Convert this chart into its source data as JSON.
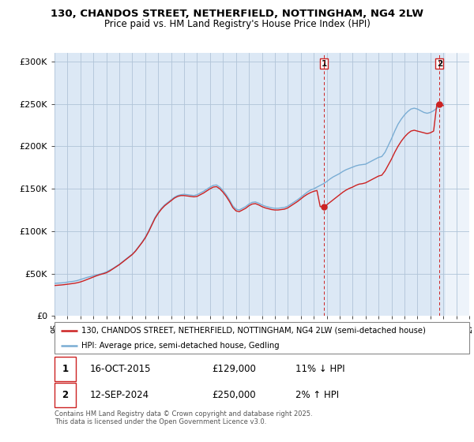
{
  "title": "130, CHANDOS STREET, NETHERFIELD, NOTTINGHAM, NG4 2LW",
  "subtitle": "Price paid vs. HM Land Registry's House Price Index (HPI)",
  "background_color": "#ffffff",
  "plot_bg_color": "#dce8f5",
  "grid_color": "#b0c4d8",
  "hpi_color": "#7aadd4",
  "price_color": "#cc2222",
  "annotation1_year": 2015.8,
  "annotation1_value": 129000,
  "annotation1_date": "16-OCT-2015",
  "annotation1_price": "£129,000",
  "annotation1_hpi": "11% ↓ HPI",
  "annotation2_year": 2024.7,
  "annotation2_value": 250000,
  "annotation2_date": "12-SEP-2024",
  "annotation2_price": "£250,000",
  "annotation2_hpi": "2% ↑ HPI",
  "ylim_min": 0,
  "ylim_max": 310000,
  "xmin": 1995,
  "xmax": 2027,
  "yticks": [
    0,
    50000,
    100000,
    150000,
    200000,
    250000,
    300000
  ],
  "ytick_labels": [
    "£0",
    "£50K",
    "£100K",
    "£150K",
    "£200K",
    "£250K",
    "£300K"
  ],
  "copyright_text": "Contains HM Land Registry data © Crown copyright and database right 2025.\nThis data is licensed under the Open Government Licence v3.0.",
  "legend_label1": "130, CHANDOS STREET, NETHERFIELD, NOTTINGHAM, NG4 2LW (semi-detached house)",
  "legend_label2": "HPI: Average price, semi-detached house, Gedling",
  "hpi_data": [
    [
      1995.0,
      38500
    ],
    [
      1995.25,
      38800
    ],
    [
      1995.5,
      39000
    ],
    [
      1995.75,
      39300
    ],
    [
      1996.0,
      40000
    ],
    [
      1996.25,
      40500
    ],
    [
      1996.5,
      41000
    ],
    [
      1996.75,
      41800
    ],
    [
      1997.0,
      43000
    ],
    [
      1997.25,
      44200
    ],
    [
      1997.5,
      45500
    ],
    [
      1997.75,
      46500
    ],
    [
      1998.0,
      47500
    ],
    [
      1998.25,
      48500
    ],
    [
      1998.5,
      49500
    ],
    [
      1998.75,
      50500
    ],
    [
      1999.0,
      52000
    ],
    [
      1999.25,
      54000
    ],
    [
      1999.5,
      56000
    ],
    [
      1999.75,
      58500
    ],
    [
      2000.0,
      61000
    ],
    [
      2000.25,
      64000
    ],
    [
      2000.5,
      67000
    ],
    [
      2000.75,
      70000
    ],
    [
      2001.0,
      73000
    ],
    [
      2001.25,
      77000
    ],
    [
      2001.5,
      82000
    ],
    [
      2001.75,
      87000
    ],
    [
      2002.0,
      93000
    ],
    [
      2002.25,
      100000
    ],
    [
      2002.5,
      108000
    ],
    [
      2002.75,
      116000
    ],
    [
      2003.0,
      122000
    ],
    [
      2003.25,
      127000
    ],
    [
      2003.5,
      131000
    ],
    [
      2003.75,
      134000
    ],
    [
      2004.0,
      137000
    ],
    [
      2004.25,
      140000
    ],
    [
      2004.5,
      142000
    ],
    [
      2004.75,
      143000
    ],
    [
      2005.0,
      143500
    ],
    [
      2005.25,
      143000
    ],
    [
      2005.5,
      142500
    ],
    [
      2005.75,
      142000
    ],
    [
      2006.0,
      143000
    ],
    [
      2006.25,
      145000
    ],
    [
      2006.5,
      147000
    ],
    [
      2006.75,
      149500
    ],
    [
      2007.0,
      152000
    ],
    [
      2007.25,
      154000
    ],
    [
      2007.5,
      154500
    ],
    [
      2007.75,
      152000
    ],
    [
      2008.0,
      148000
    ],
    [
      2008.25,
      143000
    ],
    [
      2008.5,
      137000
    ],
    [
      2008.75,
      130000
    ],
    [
      2009.0,
      126000
    ],
    [
      2009.25,
      125000
    ],
    [
      2009.5,
      127000
    ],
    [
      2009.75,
      129000
    ],
    [
      2010.0,
      132000
    ],
    [
      2010.25,
      134000
    ],
    [
      2010.5,
      134500
    ],
    [
      2010.75,
      133000
    ],
    [
      2011.0,
      131000
    ],
    [
      2011.25,
      129500
    ],
    [
      2011.5,
      128500
    ],
    [
      2011.75,
      127500
    ],
    [
      2012.0,
      127000
    ],
    [
      2012.25,
      127000
    ],
    [
      2012.5,
      127500
    ],
    [
      2012.75,
      128000
    ],
    [
      2013.0,
      129500
    ],
    [
      2013.25,
      132000
    ],
    [
      2013.5,
      134500
    ],
    [
      2013.75,
      137000
    ],
    [
      2014.0,
      140000
    ],
    [
      2014.25,
      143000
    ],
    [
      2014.5,
      146000
    ],
    [
      2014.75,
      148500
    ],
    [
      2015.0,
      150000
    ],
    [
      2015.25,
      152000
    ],
    [
      2015.5,
      154000
    ],
    [
      2015.75,
      156000
    ],
    [
      2016.0,
      158500
    ],
    [
      2016.25,
      161500
    ],
    [
      2016.5,
      164000
    ],
    [
      2016.75,
      166000
    ],
    [
      2017.0,
      168000
    ],
    [
      2017.25,
      170500
    ],
    [
      2017.5,
      172500
    ],
    [
      2017.75,
      174000
    ],
    [
      2018.0,
      175500
    ],
    [
      2018.25,
      177000
    ],
    [
      2018.5,
      178000
    ],
    [
      2018.75,
      178500
    ],
    [
      2019.0,
      179000
    ],
    [
      2019.25,
      181000
    ],
    [
      2019.5,
      183000
    ],
    [
      2019.75,
      185000
    ],
    [
      2020.0,
      187000
    ],
    [
      2020.25,
      188000
    ],
    [
      2020.5,
      193000
    ],
    [
      2020.75,
      201000
    ],
    [
      2021.0,
      209000
    ],
    [
      2021.25,
      218000
    ],
    [
      2021.5,
      226000
    ],
    [
      2021.75,
      232000
    ],
    [
      2022.0,
      237000
    ],
    [
      2022.25,
      241000
    ],
    [
      2022.5,
      244000
    ],
    [
      2022.75,
      245000
    ],
    [
      2023.0,
      244000
    ],
    [
      2023.25,
      242000
    ],
    [
      2023.5,
      240000
    ],
    [
      2023.75,
      239000
    ],
    [
      2024.0,
      240000
    ],
    [
      2024.25,
      242000
    ],
    [
      2024.5,
      245000
    ],
    [
      2024.75,
      248000
    ],
    [
      2025.0,
      250000
    ]
  ],
  "price_data": [
    [
      1995.0,
      36000
    ],
    [
      1995.25,
      36300
    ],
    [
      1995.5,
      36600
    ],
    [
      1995.75,
      37000
    ],
    [
      1996.0,
      37500
    ],
    [
      1996.25,
      38000
    ],
    [
      1996.5,
      38500
    ],
    [
      1996.75,
      39200
    ],
    [
      1997.0,
      40200
    ],
    [
      1997.25,
      41500
    ],
    [
      1997.5,
      43000
    ],
    [
      1997.75,
      44500
    ],
    [
      1998.0,
      46000
    ],
    [
      1998.25,
      47500
    ],
    [
      1998.5,
      48800
    ],
    [
      1998.75,
      49800
    ],
    [
      1999.0,
      51000
    ],
    [
      1999.25,
      53000
    ],
    [
      1999.5,
      55500
    ],
    [
      1999.75,
      58000
    ],
    [
      2000.0,
      60500
    ],
    [
      2000.25,
      63500
    ],
    [
      2000.5,
      66500
    ],
    [
      2000.75,
      69500
    ],
    [
      2001.0,
      72500
    ],
    [
      2001.25,
      76500
    ],
    [
      2001.5,
      81500
    ],
    [
      2001.75,
      86500
    ],
    [
      2002.0,
      92000
    ],
    [
      2002.25,
      99000
    ],
    [
      2002.5,
      107000
    ],
    [
      2002.75,
      115000
    ],
    [
      2003.0,
      121000
    ],
    [
      2003.25,
      126000
    ],
    [
      2003.5,
      130000
    ],
    [
      2003.75,
      133000
    ],
    [
      2004.0,
      136000
    ],
    [
      2004.25,
      139000
    ],
    [
      2004.5,
      141000
    ],
    [
      2004.75,
      142000
    ],
    [
      2005.0,
      142000
    ],
    [
      2005.25,
      141500
    ],
    [
      2005.5,
      141000
    ],
    [
      2005.75,
      140500
    ],
    [
      2006.0,
      141000
    ],
    [
      2006.25,
      143000
    ],
    [
      2006.5,
      145000
    ],
    [
      2006.75,
      147500
    ],
    [
      2007.0,
      150000
    ],
    [
      2007.25,
      152000
    ],
    [
      2007.5,
      152500
    ],
    [
      2007.75,
      150000
    ],
    [
      2008.0,
      146000
    ],
    [
      2008.25,
      141000
    ],
    [
      2008.5,
      135000
    ],
    [
      2008.75,
      128000
    ],
    [
      2009.0,
      124000
    ],
    [
      2009.25,
      123000
    ],
    [
      2009.5,
      125000
    ],
    [
      2009.75,
      127000
    ],
    [
      2010.0,
      130000
    ],
    [
      2010.25,
      132000
    ],
    [
      2010.5,
      132500
    ],
    [
      2010.75,
      131000
    ],
    [
      2011.0,
      129000
    ],
    [
      2011.25,
      127500
    ],
    [
      2011.5,
      126500
    ],
    [
      2011.75,
      125500
    ],
    [
      2012.0,
      125000
    ],
    [
      2012.25,
      125000
    ],
    [
      2012.5,
      125500
    ],
    [
      2012.75,
      126000
    ],
    [
      2013.0,
      127500
    ],
    [
      2013.25,
      130000
    ],
    [
      2013.5,
      132500
    ],
    [
      2013.75,
      135000
    ],
    [
      2014.0,
      138000
    ],
    [
      2014.25,
      141000
    ],
    [
      2014.5,
      143500
    ],
    [
      2014.75,
      145500
    ],
    [
      2015.0,
      147000
    ],
    [
      2015.25,
      148000
    ],
    [
      2015.5,
      129000
    ],
    [
      2015.75,
      129000
    ],
    [
      2016.0,
      131000
    ],
    [
      2016.25,
      134000
    ],
    [
      2016.5,
      137000
    ],
    [
      2016.75,
      140000
    ],
    [
      2017.0,
      143000
    ],
    [
      2017.25,
      146000
    ],
    [
      2017.5,
      148500
    ],
    [
      2017.75,
      150500
    ],
    [
      2018.0,
      152000
    ],
    [
      2018.25,
      154000
    ],
    [
      2018.5,
      155500
    ],
    [
      2018.75,
      156000
    ],
    [
      2019.0,
      157000
    ],
    [
      2019.25,
      159000
    ],
    [
      2019.5,
      161000
    ],
    [
      2019.75,
      163000
    ],
    [
      2020.0,
      165000
    ],
    [
      2020.25,
      166000
    ],
    [
      2020.5,
      171000
    ],
    [
      2020.75,
      178000
    ],
    [
      2021.0,
      185000
    ],
    [
      2021.25,
      193000
    ],
    [
      2021.5,
      200000
    ],
    [
      2021.75,
      206000
    ],
    [
      2022.0,
      211000
    ],
    [
      2022.25,
      215000
    ],
    [
      2022.5,
      218000
    ],
    [
      2022.75,
      219000
    ],
    [
      2023.0,
      218000
    ],
    [
      2023.25,
      217000
    ],
    [
      2023.5,
      216000
    ],
    [
      2023.75,
      215000
    ],
    [
      2024.0,
      216000
    ],
    [
      2024.25,
      218000
    ],
    [
      2024.5,
      250000
    ],
    [
      2024.75,
      250000
    ],
    [
      2025.0,
      248000
    ]
  ]
}
